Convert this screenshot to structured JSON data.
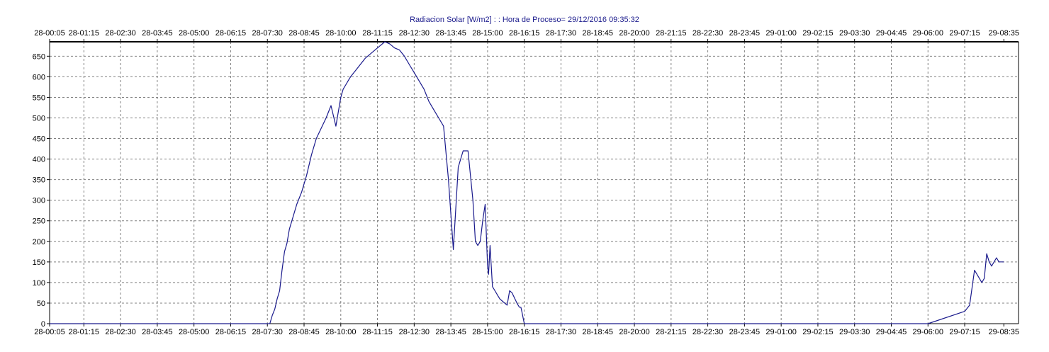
{
  "chart_data": {
    "type": "line",
    "title": "Radiacion Solar [W/m2] : : Hora de Proceso= 29/12/2016 09:35:32",
    "xlabel": "",
    "ylabel": "",
    "ylim": [
      0,
      685
    ],
    "yticks": [
      0,
      50,
      100,
      150,
      200,
      250,
      300,
      350,
      400,
      450,
      500,
      550,
      600,
      650
    ],
    "xlim_minutes": [
      5,
      1985
    ],
    "xticks": [
      "28-00:05",
      "28-01:15",
      "28-02:30",
      "28-03:45",
      "28-05:00",
      "28-06:15",
      "28-07:30",
      "28-08:45",
      "28-10:00",
      "28-11:15",
      "28-12:30",
      "28-13:45",
      "28-15:00",
      "28-16:15",
      "28-17:30",
      "28-18:45",
      "28-20:00",
      "28-21:15",
      "28-22:30",
      "28-23:45",
      "29-01:00",
      "29-02:15",
      "29-03:30",
      "29-04:45",
      "29-06:00",
      "29-07:15",
      "29-08:35"
    ],
    "grid": true,
    "legend": "none",
    "series": [
      {
        "color": "#1a1a8c",
        "x": [
          "28-00:05",
          "28-07:35",
          "28-07:40",
          "28-07:45",
          "28-07:50",
          "28-07:55",
          "28-08:00",
          "28-08:05",
          "28-08:10",
          "28-08:15",
          "28-08:20",
          "28-08:30",
          "28-08:40",
          "28-08:50",
          "28-09:00",
          "28-09:10",
          "28-09:20",
          "28-09:30",
          "28-09:40",
          "28-09:50",
          "28-10:00",
          "28-10:05",
          "28-10:10",
          "28-10:15",
          "28-10:20",
          "28-10:30",
          "28-10:40",
          "28-10:50",
          "28-11:00",
          "28-11:10",
          "28-11:20",
          "28-11:30",
          "28-11:40",
          "28-11:50",
          "28-12:00",
          "28-12:10",
          "28-12:20",
          "28-12:30",
          "28-12:40",
          "28-12:50",
          "28-13:00",
          "28-13:10",
          "28-13:20",
          "28-13:30",
          "28-13:40",
          "28-13:50",
          "28-14:00",
          "28-14:10",
          "28-14:20",
          "28-14:30",
          "28-14:35",
          "28-14:40",
          "28-14:45",
          "28-14:50",
          "28-14:55",
          "28-15:00",
          "28-15:02",
          "28-15:05",
          "28-15:10",
          "28-15:15",
          "28-15:20",
          "28-15:25",
          "28-15:30",
          "28-15:40",
          "28-15:45",
          "28-15:50",
          "28-16:00",
          "28-16:05",
          "28-16:08",
          "28-16:10",
          "28-16:15",
          "28-16:20",
          "28-16:25",
          "28-16:30",
          "28-16:40",
          "28-16:50",
          "28-17:00",
          "28-17:05",
          "28-17:10",
          "28-17:15",
          "28-17:20",
          "28-17:30",
          "28-17:35",
          "28-17:40",
          "28-17:45",
          "29-06:00",
          "29-07:15",
          "29-07:25",
          "29-07:35",
          "29-07:45",
          "29-07:50",
          "29-07:55",
          "29-08:00",
          "29-08:05",
          "29-08:10",
          "29-08:15",
          "29-08:20",
          "29-08:25",
          "29-08:30",
          "29-08:35"
        ],
        "y": [
          0,
          0,
          20,
          35,
          60,
          80,
          130,
          175,
          195,
          230,
          250,
          290,
          320,
          360,
          410,
          450,
          475,
          500,
          530,
          480,
          550,
          570,
          580,
          590,
          600,
          615,
          630,
          645,
          655,
          665,
          675,
          685,
          680,
          670,
          665,
          650,
          630,
          610,
          590,
          570,
          540,
          520,
          500,
          480,
          350,
          180,
          380,
          420,
          420,
          300,
          200,
          190,
          200,
          250,
          290,
          140,
          120,
          190,
          90,
          80,
          70,
          60,
          55,
          45,
          80,
          75,
          50,
          40,
          40,
          30,
          0,
          0,
          0,
          0,
          0,
          0,
          0,
          0,
          0,
          0,
          0,
          0,
          0,
          0,
          0,
          0,
          30,
          45,
          130,
          110,
          100,
          110,
          170,
          150,
          140,
          150,
          160,
          150,
          150,
          150
        ]
      }
    ]
  }
}
